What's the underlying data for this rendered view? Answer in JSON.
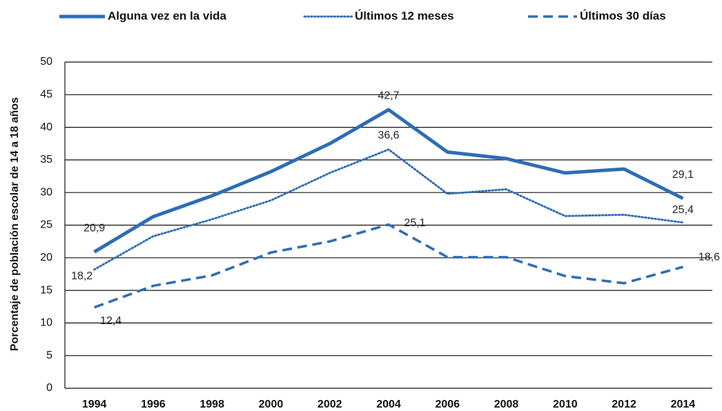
{
  "chart_data": {
    "type": "line",
    "title": "",
    "xlabel": "",
    "ylabel": "Porcentaje de población escolar de 14 a 18 años",
    "ylim": [
      0,
      50
    ],
    "yticks": [
      0,
      5,
      10,
      15,
      20,
      25,
      30,
      35,
      40,
      45,
      50
    ],
    "x": [
      "1994",
      "1996",
      "1998",
      "2000",
      "2002",
      "2004",
      "2006",
      "2008",
      "2010",
      "2012",
      "2014"
    ],
    "grid": "horizontal",
    "legend_position": "top",
    "series": [
      {
        "name": "Alguna vez en la vida",
        "style": "solid",
        "color": "#2E6DB4",
        "values": [
          20.9,
          26.3,
          29.5,
          33.2,
          37.5,
          42.7,
          36.2,
          35.2,
          33.0,
          33.6,
          29.1
        ],
        "labels": [
          {
            "index": 0,
            "text": "20,9"
          },
          {
            "index": 5,
            "text": "42,7"
          },
          {
            "index": 10,
            "text": "29,1"
          }
        ]
      },
      {
        "name": "Últimos 12 meses",
        "style": "dotted",
        "color": "#2E6DB4",
        "values": [
          18.2,
          23.3,
          25.9,
          28.8,
          33.0,
          36.6,
          29.8,
          30.5,
          26.4,
          26.6,
          25.4
        ],
        "labels": [
          {
            "index": 0,
            "text": "18,2"
          },
          {
            "index": 5,
            "text": "36,6"
          },
          {
            "index": 10,
            "text": "25,4"
          }
        ]
      },
      {
        "name": "Últimos 30 días",
        "style": "dashed",
        "color": "#2E6DB4",
        "values": [
          12.4,
          15.7,
          17.3,
          20.8,
          22.5,
          25.1,
          20.1,
          20.1,
          17.2,
          16.1,
          18.6
        ],
        "labels": [
          {
            "index": 0,
            "text": "12,4"
          },
          {
            "index": 5,
            "text": "25,1"
          },
          {
            "index": 10,
            "text": "18,6"
          }
        ]
      }
    ]
  }
}
